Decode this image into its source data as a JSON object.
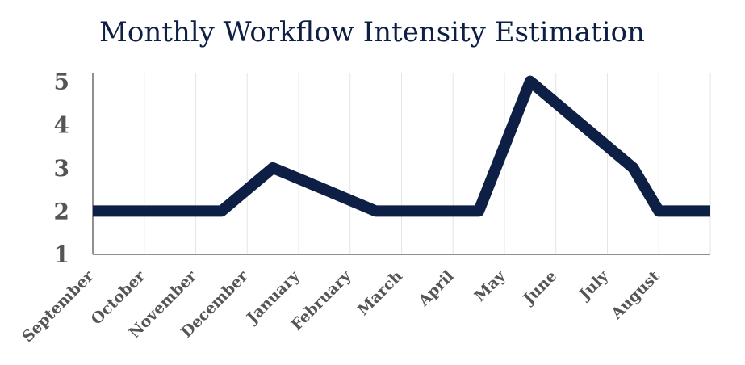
{
  "chart_data": {
    "type": "line",
    "title": "Monthly Workflow Intensity Estimation",
    "categories": [
      "September",
      "October",
      "November",
      "December",
      "January",
      "February",
      "March",
      "April",
      "May",
      "June",
      "July",
      "August"
    ],
    "series": [
      {
        "values": [
          2,
          2,
          2,
          2,
          3,
          2.5,
          2,
          2,
          2,
          5,
          4,
          3,
          2,
          2
        ]
      }
    ],
    "x_values": [
      0,
      1,
      2,
      2.5,
      3.5,
      4.5,
      5.5,
      6.5,
      7.5,
      8.5,
      9.5,
      10.5,
      11,
      12
    ],
    "yticks": [
      "1",
      "2",
      "3",
      "4",
      "5"
    ],
    "ylim": [
      1,
      5.2
    ],
    "xlabel": "",
    "ylabel": "",
    "grid": "vertical",
    "legend": "none",
    "line_color": "#0d1f45"
  }
}
